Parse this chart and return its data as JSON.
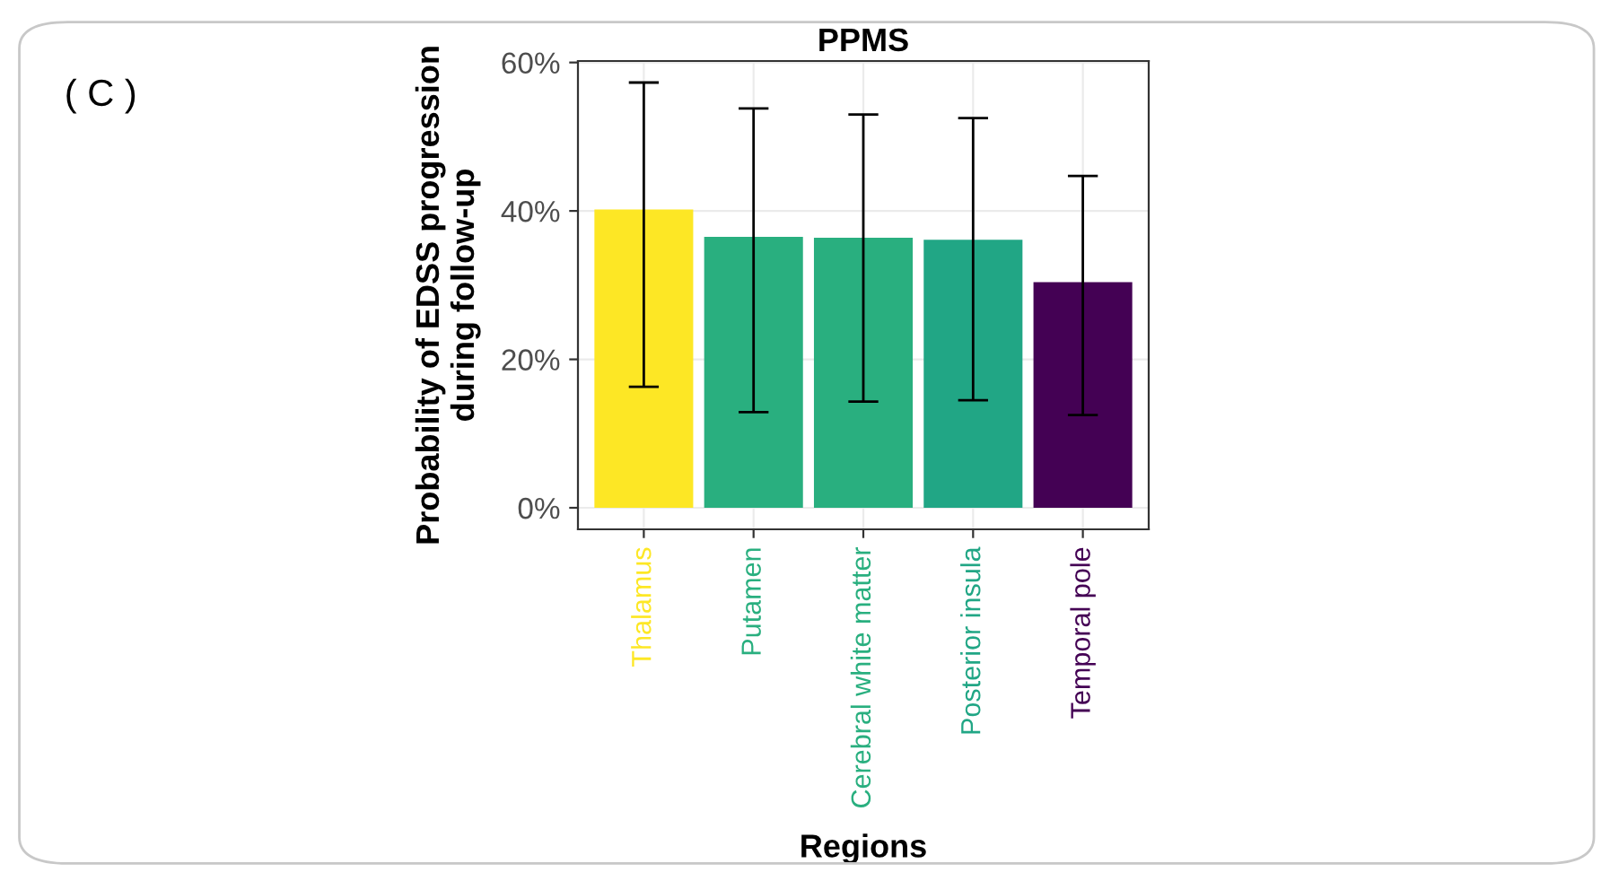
{
  "chart_data": {
    "type": "bar",
    "title": "PPMS",
    "xlabel": "Regions",
    "ylabel": "Probability of EDSS progression\nduring follow-up",
    "annotations": [
      "( C )"
    ],
    "categories": [
      "Thalamus",
      "Putamen",
      "Cerebral white matter",
      "Posterior insula",
      "Temporal pole"
    ],
    "values": [
      40.2,
      36.5,
      36.4,
      36.1,
      30.4
    ],
    "errors": [
      [
        16.3,
        57.3
      ],
      [
        12.9,
        53.8
      ],
      [
        14.3,
        53.0
      ],
      [
        14.5,
        52.5
      ],
      [
        12.5,
        44.7
      ]
    ],
    "colors": [
      "#fde725",
      "#29af7f",
      "#29af7f",
      "#21a685",
      "#440154"
    ],
    "ylim": [
      -2.9,
      60.2
    ],
    "yticks": [
      {
        "value": 0,
        "label": "0%"
      },
      {
        "value": 20,
        "label": "20%"
      },
      {
        "value": 40,
        "label": "40%"
      },
      {
        "value": 60,
        "label": "60%"
      }
    ],
    "grid": true
  }
}
